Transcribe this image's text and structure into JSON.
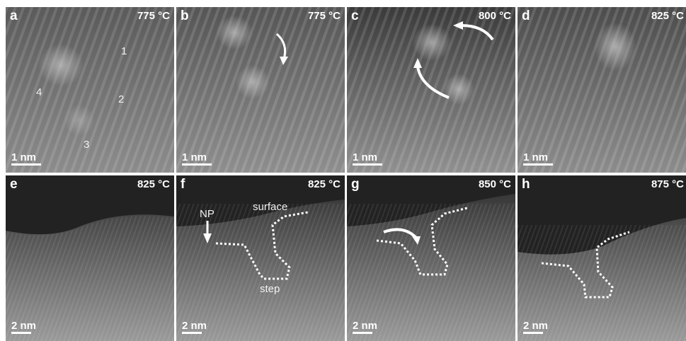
{
  "panels": [
    {
      "label": "a",
      "temp": "775 °C",
      "scale": "1 nm"
    },
    {
      "label": "b",
      "temp": "775 °C",
      "scale": "1 nm"
    },
    {
      "label": "c",
      "temp": "800 °C",
      "scale": "1 nm"
    },
    {
      "label": "d",
      "temp": "825 °C",
      "scale": "1 nm"
    },
    {
      "label": "e",
      "temp": "825 °C",
      "scale": "2 nm"
    },
    {
      "label": "f",
      "temp": "825 °C",
      "scale": "2 nm"
    },
    {
      "label": "g",
      "temp": "850 °C",
      "scale": "2 nm"
    },
    {
      "label": "h",
      "temp": "875 °C",
      "scale": "2 nm"
    }
  ],
  "annotations": {
    "a_numbers": [
      "1",
      "2",
      "3",
      "4"
    ],
    "f_np": "NP",
    "f_surface": "surface",
    "f_step": "step"
  },
  "colors": {
    "overlay": "#ffffff",
    "background": "#ffffff"
  }
}
